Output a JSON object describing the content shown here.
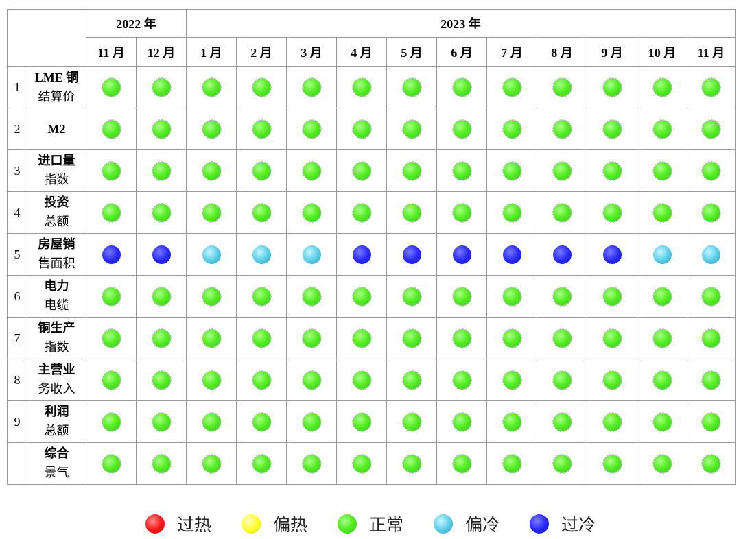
{
  "chart_data": {
    "type": "table",
    "header": {
      "years": [
        {
          "label": "2022 年",
          "span": 2
        },
        {
          "label": "2023 年",
          "span": 11
        }
      ],
      "months": [
        "11 月",
        "12 月",
        "1 月",
        "2 月",
        "3 月",
        "4 月",
        "5 月",
        "6 月",
        "7 月",
        "8 月",
        "9 月",
        "10 月",
        "11 月"
      ]
    },
    "rows": [
      {
        "num": "1",
        "line1": "LME 铜",
        "line2": "结算价",
        "status": [
          "正常",
          "正常",
          "正常",
          "正常",
          "正常",
          "正常",
          "正常",
          "正常",
          "正常",
          "正常",
          "正常",
          "正常",
          "正常"
        ]
      },
      {
        "num": "2",
        "line1": "M2",
        "line2": "",
        "status": [
          "正常",
          "正常",
          "正常",
          "正常",
          "正常",
          "正常",
          "正常",
          "正常",
          "正常",
          "正常",
          "正常",
          "正常",
          "正常"
        ]
      },
      {
        "num": "3",
        "line1": "进口量",
        "line2": "指数",
        "status": [
          "正常",
          "正常",
          "正常",
          "正常",
          "正常",
          "正常",
          "正常",
          "正常",
          "正常",
          "正常",
          "正常",
          "正常",
          "正常"
        ]
      },
      {
        "num": "4",
        "line1": "投资",
        "line2": "总额",
        "status": [
          "正常",
          "正常",
          "正常",
          "正常",
          "正常",
          "正常",
          "正常",
          "正常",
          "正常",
          "正常",
          "正常",
          "正常",
          "正常"
        ]
      },
      {
        "num": "5",
        "line1": "房屋销",
        "line2": "售面积",
        "status": [
          "过冷",
          "过冷",
          "偏冷",
          "偏冷",
          "偏冷",
          "过冷",
          "过冷",
          "过冷",
          "过冷",
          "过冷",
          "过冷",
          "偏冷",
          "偏冷"
        ]
      },
      {
        "num": "6",
        "line1": "电力",
        "line2": "电缆",
        "status": [
          "正常",
          "正常",
          "正常",
          "正常",
          "正常",
          "正常",
          "正常",
          "正常",
          "正常",
          "正常",
          "正常",
          "正常",
          "正常"
        ]
      },
      {
        "num": "7",
        "line1": "铜生产",
        "line2": "指数",
        "status": [
          "正常",
          "正常",
          "正常",
          "正常",
          "正常",
          "正常",
          "正常",
          "正常",
          "正常",
          "正常",
          "正常",
          "正常",
          "正常"
        ]
      },
      {
        "num": "8",
        "line1": "主营业",
        "line2": "务收入",
        "status": [
          "正常",
          "正常",
          "正常",
          "正常",
          "正常",
          "正常",
          "正常",
          "正常",
          "正常",
          "正常",
          "正常",
          "正常",
          "正常"
        ]
      },
      {
        "num": "9",
        "line1": "利润",
        "line2": "总额",
        "status": [
          "正常",
          "正常",
          "正常",
          "正常",
          "正常",
          "正常",
          "正常",
          "正常",
          "正常",
          "正常",
          "正常",
          "正常",
          "正常"
        ]
      },
      {
        "num": "",
        "line1": "综合",
        "line2": "景气",
        "status": [
          "正常",
          "正常",
          "正常",
          "正常",
          "正常",
          "正常",
          "正常",
          "正常",
          "正常",
          "正常",
          "正常",
          "正常",
          "正常"
        ]
      }
    ],
    "legend": [
      {
        "label": "过热",
        "color": "#ff1a1a"
      },
      {
        "label": "偏热",
        "color": "#ffff33"
      },
      {
        "label": "正常",
        "color": "#55ee22"
      },
      {
        "label": "偏冷",
        "color": "#5ccfe8"
      },
      {
        "label": "过冷",
        "color": "#2a2aff"
      }
    ]
  }
}
